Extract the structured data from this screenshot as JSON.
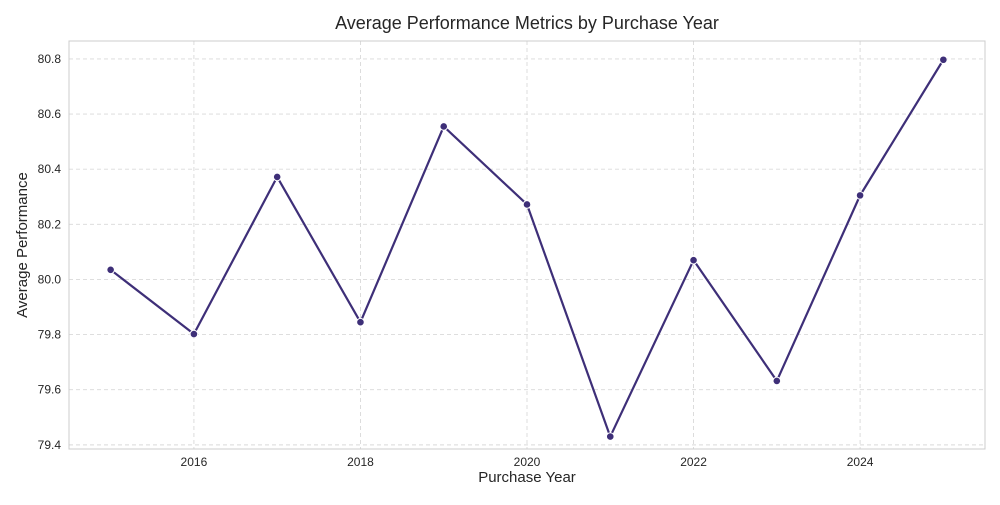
{
  "colors": {
    "line": "#3e2f78",
    "marker": "#3e2f78",
    "grid": "#d9d9d9",
    "frame": "#cccccc",
    "text": "#262626"
  },
  "chart_data": {
    "type": "line",
    "title": "Average Performance Metrics by Purchase Year",
    "xlabel": "Purchase Year",
    "ylabel": "Average Performance",
    "xlim": [
      2014.5,
      2025.5
    ],
    "ylim": [
      79.385,
      80.865
    ],
    "grid": true,
    "x_ticks": [
      2016,
      2018,
      2020,
      2022,
      2024
    ],
    "x_tick_labels": [
      "2016",
      "2018",
      "2020",
      "2022",
      "2024"
    ],
    "y_ticks": [
      79.4,
      79.6,
      79.8,
      80.0,
      80.2,
      80.4,
      80.6,
      80.8
    ],
    "y_tick_labels": [
      "79.4",
      "79.6",
      "79.8",
      "80.0",
      "80.2",
      "80.4",
      "80.6",
      "80.8"
    ],
    "series": [
      {
        "x": [
          2015,
          2016,
          2017,
          2018,
          2019,
          2020,
          2021,
          2022,
          2023,
          2024,
          2025
        ],
        "values": [
          80.035,
          79.802,
          80.372,
          79.845,
          80.555,
          80.272,
          79.43,
          80.07,
          79.632,
          80.305,
          80.797
        ]
      }
    ]
  }
}
